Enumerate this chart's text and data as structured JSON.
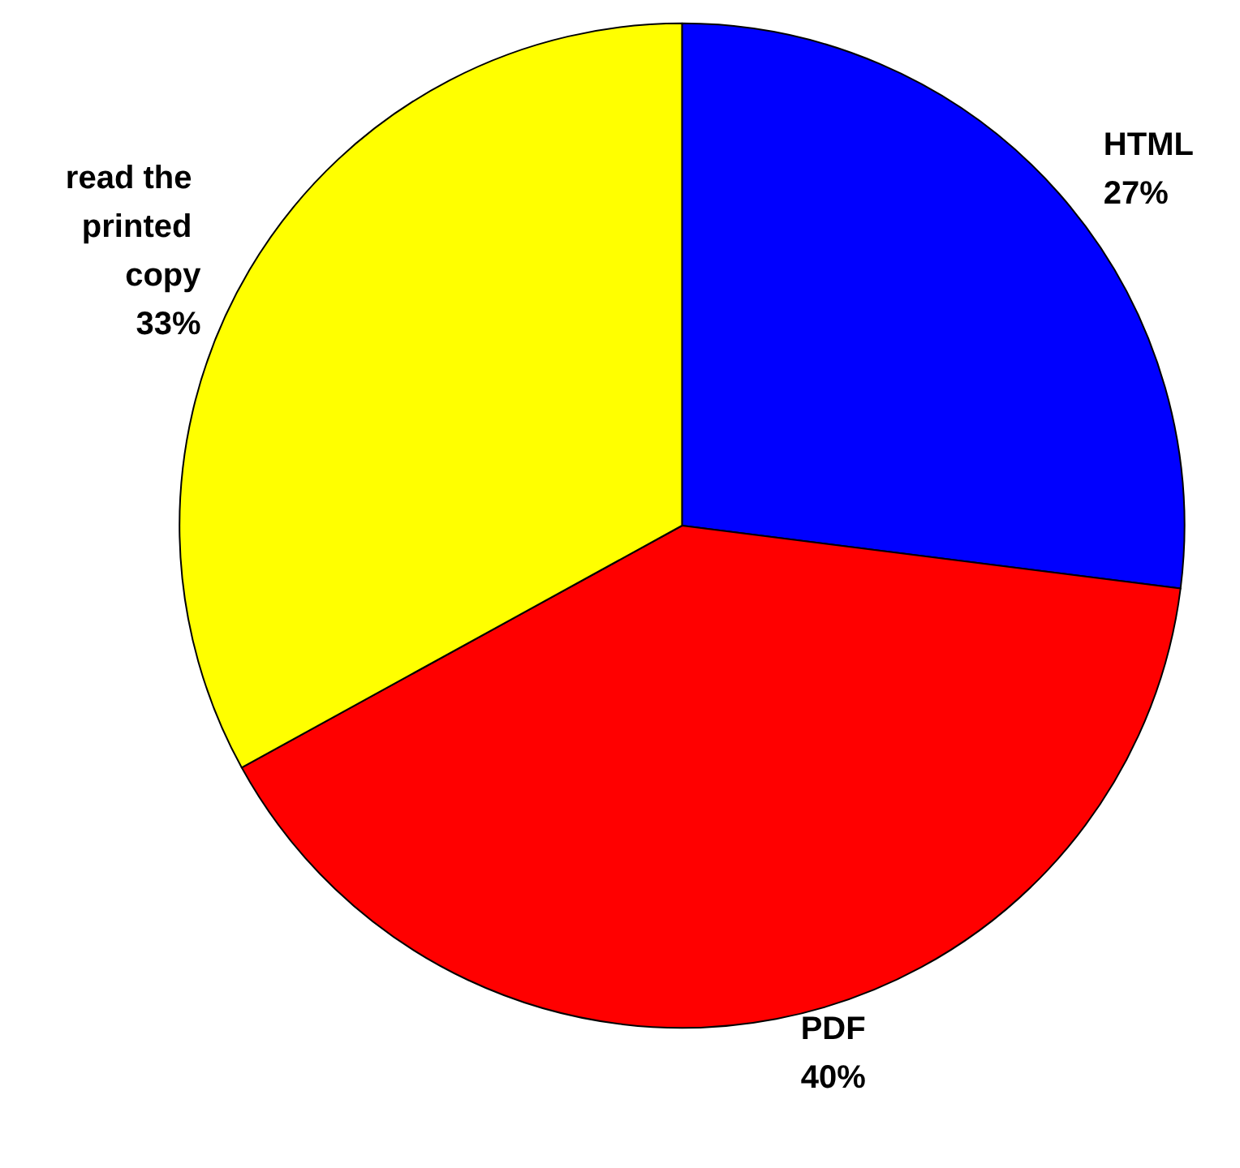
{
  "chart_data": {
    "type": "pie",
    "categories": [
      "HTML",
      "PDF",
      "read the printed copy"
    ],
    "values": [
      27,
      40,
      33
    ],
    "value_labels": [
      "27%",
      "40%",
      "33%"
    ],
    "colors": [
      "#0000ff",
      "#ff0000",
      "#ffff00"
    ],
    "legend": false
  }
}
